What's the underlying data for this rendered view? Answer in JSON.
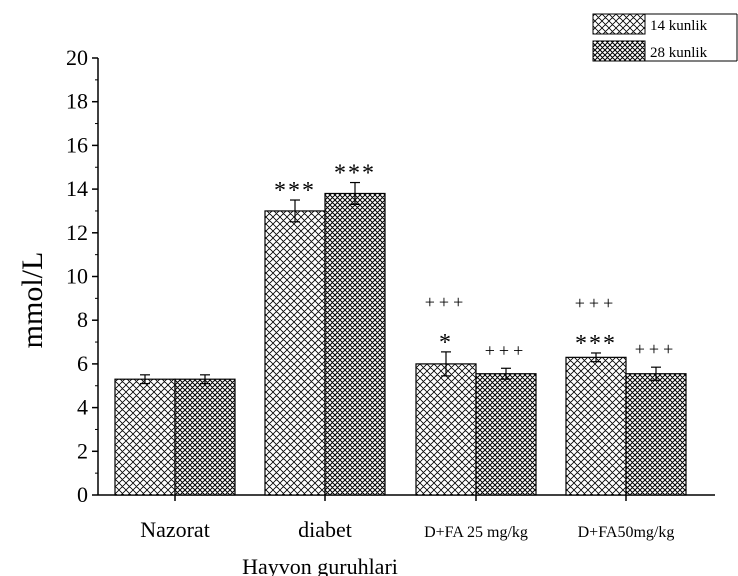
{
  "chart_data": {
    "type": "bar",
    "xlabel": "Hayvon guruhlari",
    "ylabel": "mmol/L",
    "ylim": [
      0,
      20
    ],
    "yticks": [
      0,
      2,
      4,
      6,
      8,
      10,
      12,
      14,
      16,
      18,
      20
    ],
    "categories": [
      "Nazorat",
      "diabet",
      "D+FA 25 mg/kg",
      "D+FA50mg/kg"
    ],
    "series": [
      {
        "name": "14 kunlik",
        "pattern": "light-crosshatch",
        "values": [
          5.3,
          13.0,
          6.0,
          6.3
        ],
        "errors": [
          0.2,
          0.5,
          0.55,
          0.2
        ],
        "annotations": [
          "",
          "***",
          "+++\n*",
          "+++\n***"
        ]
      },
      {
        "name": "28 kunlik",
        "pattern": "dark-crosshatch",
        "values": [
          5.3,
          13.8,
          5.55,
          5.55
        ],
        "errors": [
          0.2,
          0.5,
          0.25,
          0.3
        ],
        "annotations": [
          "",
          "***",
          "+++",
          "+++"
        ]
      }
    ],
    "legend": "top-right",
    "grid": false
  }
}
